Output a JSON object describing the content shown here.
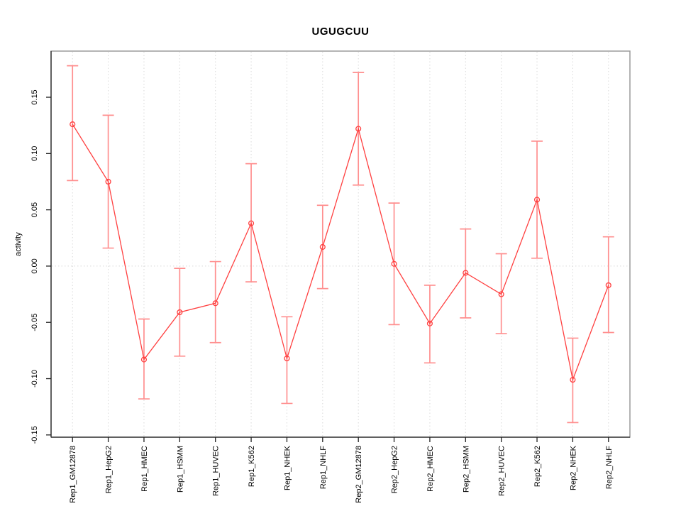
{
  "title": "UGUGCUU",
  "chart_data": {
    "type": "line",
    "title": "UGUGCUU",
    "xlabel": "",
    "ylabel": "activity",
    "legend": "none",
    "grid": "dotted vertical gridline at each category; dotted horizontal line at y=0",
    "marker": "open-circle",
    "error_bars": true,
    "categories": [
      "Rep1_GM12878",
      "Rep1_HepG2",
      "Rep1_HMEC",
      "Rep1_HSMM",
      "Rep1_HUVEC",
      "Rep1_K562",
      "Rep1_NHEK",
      "Rep1_NHLF",
      "Rep2_GM12878",
      "Rep2_HepG2",
      "Rep2_HMEC",
      "Rep2_HSMM",
      "Rep2_HUVEC",
      "Rep2_K562",
      "Rep2_NHEK",
      "Rep2_NHLF"
    ],
    "values": [
      0.126,
      0.075,
      -0.083,
      -0.041,
      -0.033,
      0.038,
      -0.082,
      0.017,
      0.122,
      0.002,
      -0.051,
      -0.006,
      -0.025,
      0.059,
      -0.101,
      -0.017
    ],
    "error_low": [
      0.076,
      0.016,
      -0.118,
      -0.08,
      -0.068,
      -0.014,
      -0.122,
      -0.02,
      0.072,
      -0.052,
      -0.086,
      -0.046,
      -0.06,
      0.007,
      -0.139,
      -0.059
    ],
    "error_high": [
      0.178,
      0.134,
      -0.047,
      -0.002,
      0.004,
      0.091,
      -0.045,
      0.054,
      0.172,
      0.056,
      -0.017,
      0.033,
      0.011,
      0.111,
      -0.064,
      0.026
    ],
    "ytick_values": [
      0.15,
      0.1,
      0.05,
      0.0,
      -0.05,
      -0.1,
      -0.15
    ],
    "ytick_labels": [
      "0.15",
      "0.10",
      "0.05",
      "0.00",
      "-0.05",
      "-0.10",
      "-0.15"
    ],
    "ylim": [
      -0.152,
      0.191
    ],
    "xlim": [
      0.4,
      16.6
    ],
    "colors": {
      "series": "#ff4040",
      "error_bar": "#ff8f8f",
      "grid": "#d9d9d9",
      "box": "#9b9b9b",
      "axis": "#3c3c3c",
      "tick": "#222222",
      "text": "#000000",
      "background": "#ffffff"
    }
  }
}
